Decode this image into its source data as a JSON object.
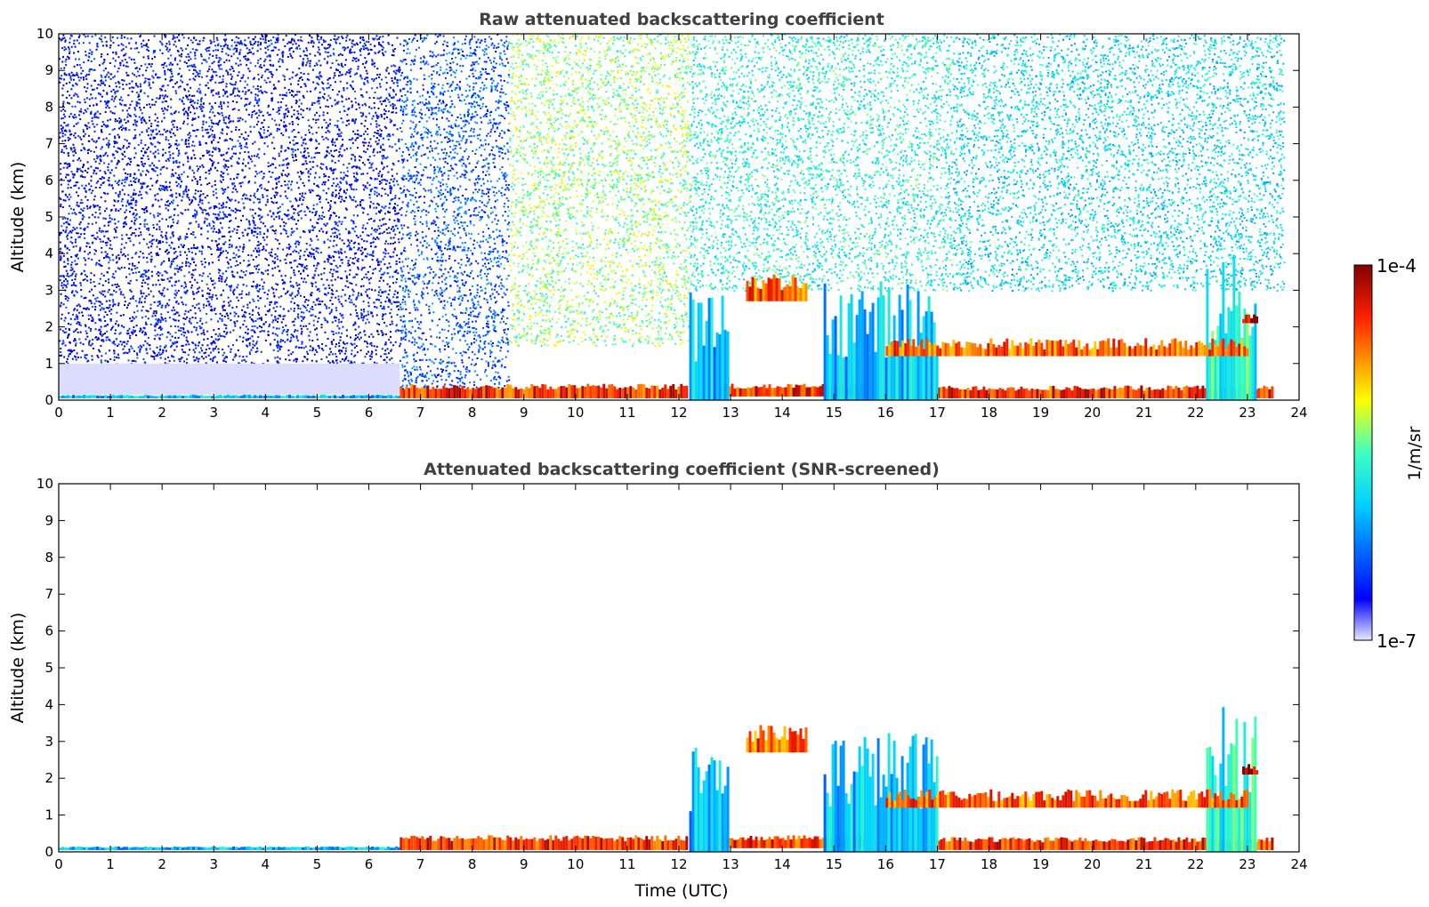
{
  "chart_data": [
    {
      "type": "heatmap",
      "title": "Raw attenuated backscattering coefficient",
      "xlabel": "",
      "ylabel": "Altitude (km)",
      "xlim": [
        0,
        24
      ],
      "ylim": [
        0,
        10
      ],
      "xticks": [
        0,
        1,
        2,
        3,
        4,
        5,
        6,
        7,
        8,
        9,
        10,
        11,
        12,
        13,
        14,
        15,
        16,
        17,
        18,
        19,
        20,
        21,
        22,
        23,
        24
      ],
      "yticks": [
        0,
        1,
        2,
        3,
        4,
        5,
        6,
        7,
        8,
        9,
        10
      ],
      "colorscale": "jet",
      "features": [
        {
          "kind": "noise",
          "x": [
            0,
            6.6
          ],
          "y": [
            1.0,
            10
          ],
          "level": 0.12
        },
        {
          "kind": "noise",
          "x": [
            6.6,
            8.7
          ],
          "y": [
            0.3,
            10
          ],
          "level": 0.22
        },
        {
          "kind": "noise",
          "x": [
            8.7,
            12.2
          ],
          "y": [
            1.5,
            10
          ],
          "level": 0.55
        },
        {
          "kind": "noise",
          "x": [
            12.2,
            17.3
          ],
          "y": [
            3.0,
            10
          ],
          "level": 0.45
        },
        {
          "kind": "noise",
          "x": [
            17.3,
            23.7
          ],
          "y": [
            3.0,
            10
          ],
          "level": 0.4
        },
        {
          "kind": "haze",
          "x": [
            0,
            6.6
          ],
          "y": [
            0.15,
            1.0
          ],
          "level": 0.05
        },
        {
          "kind": "layer",
          "x": [
            0,
            6.6
          ],
          "y": [
            0.05,
            0.15
          ],
          "level": 0.35
        },
        {
          "kind": "layer",
          "x": [
            6.6,
            12.2
          ],
          "y": [
            0.05,
            0.45
          ],
          "level": 0.85
        },
        {
          "kind": "layer",
          "x": [
            12.8,
            15.6
          ],
          "y": [
            0.1,
            0.45
          ],
          "level": 0.85
        },
        {
          "kind": "layer",
          "x": [
            17.0,
            23.5
          ],
          "y": [
            0.05,
            0.4
          ],
          "level": 0.85
        },
        {
          "kind": "column",
          "x": [
            12.2,
            13.0
          ],
          "y": [
            0,
            3.0
          ],
          "level": 0.35
        },
        {
          "kind": "column",
          "x": [
            14.8,
            17.0
          ],
          "y": [
            0,
            3.3
          ],
          "level": 0.35
        },
        {
          "kind": "column",
          "x": [
            22.2,
            23.2
          ],
          "y": [
            0,
            4.0
          ],
          "level": 0.45
        },
        {
          "kind": "cloud",
          "x": [
            13.3,
            14.5
          ],
          "y": [
            2.7,
            3.5
          ],
          "level": 0.8
        },
        {
          "kind": "cloud",
          "x": [
            16.0,
            23.0
          ],
          "y": [
            1.2,
            1.7
          ],
          "level": 0.8
        },
        {
          "kind": "cloud",
          "x": [
            22.9,
            23.2
          ],
          "y": [
            2.1,
            2.4
          ],
          "level": 0.95
        }
      ]
    },
    {
      "type": "heatmap",
      "title": "Attenuated backscattering coefficient (SNR-screened)",
      "xlabel": "Time (UTC)",
      "ylabel": "Altitude (km)",
      "xlim": [
        0,
        24
      ],
      "ylim": [
        0,
        10
      ],
      "xticks": [
        0,
        1,
        2,
        3,
        4,
        5,
        6,
        7,
        8,
        9,
        10,
        11,
        12,
        13,
        14,
        15,
        16,
        17,
        18,
        19,
        20,
        21,
        22,
        23,
        24
      ],
      "yticks": [
        0,
        1,
        2,
        3,
        4,
        5,
        6,
        7,
        8,
        9,
        10
      ],
      "colorscale": "jet",
      "features": [
        {
          "kind": "layer",
          "x": [
            0,
            6.6
          ],
          "y": [
            0.05,
            0.15
          ],
          "level": 0.35
        },
        {
          "kind": "layer",
          "x": [
            6.6,
            12.2
          ],
          "y": [
            0.05,
            0.45
          ],
          "level": 0.85
        },
        {
          "kind": "layer",
          "x": [
            12.8,
            15.6
          ],
          "y": [
            0.1,
            0.45
          ],
          "level": 0.85
        },
        {
          "kind": "layer",
          "x": [
            17.0,
            23.5
          ],
          "y": [
            0.05,
            0.4
          ],
          "level": 0.85
        },
        {
          "kind": "column",
          "x": [
            12.2,
            13.0
          ],
          "y": [
            0,
            3.0
          ],
          "level": 0.35
        },
        {
          "kind": "column",
          "x": [
            14.8,
            17.0
          ],
          "y": [
            0,
            3.3
          ],
          "level": 0.35
        },
        {
          "kind": "column",
          "x": [
            22.2,
            23.2
          ],
          "y": [
            0,
            4.0
          ],
          "level": 0.45
        },
        {
          "kind": "cloud",
          "x": [
            13.3,
            14.5
          ],
          "y": [
            2.7,
            3.5
          ],
          "level": 0.8
        },
        {
          "kind": "cloud",
          "x": [
            16.0,
            23.0
          ],
          "y": [
            1.2,
            1.7
          ],
          "level": 0.8
        },
        {
          "kind": "cloud",
          "x": [
            22.9,
            23.2
          ],
          "y": [
            2.1,
            2.4
          ],
          "level": 0.95
        }
      ]
    }
  ],
  "colorbar": {
    "label": "1/m/sr",
    "max_label": "1e-4",
    "min_label": "1e-7",
    "range": [
      1e-07,
      0.0001
    ],
    "scale": "log"
  }
}
